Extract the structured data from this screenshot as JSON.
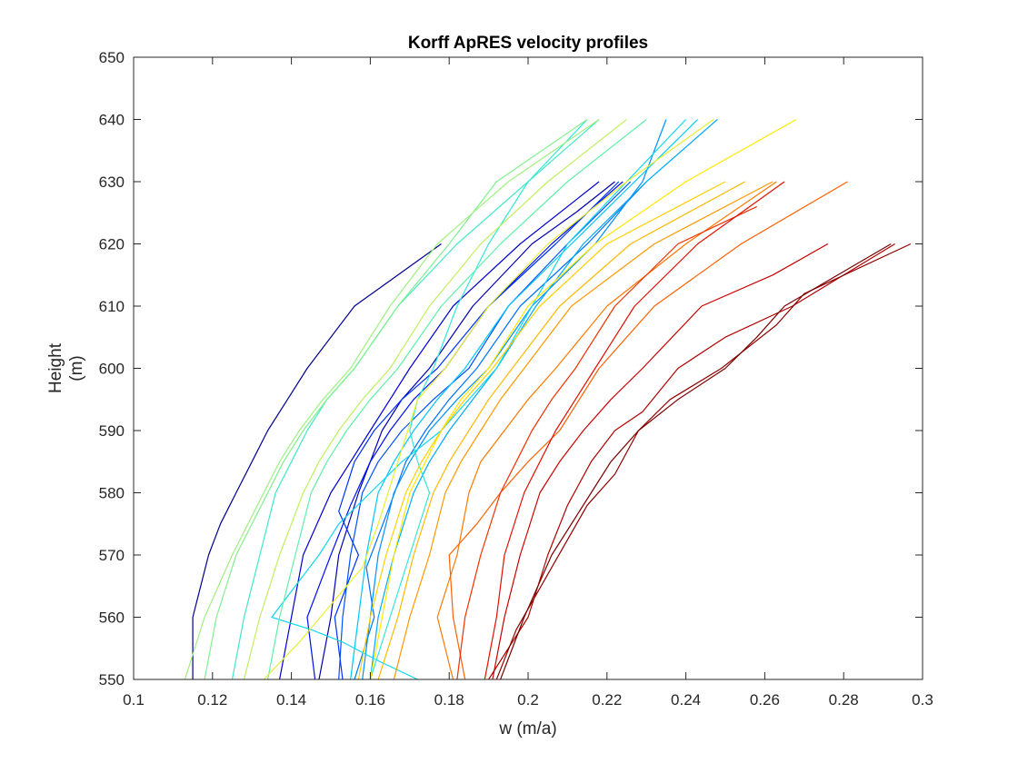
{
  "chart_data": {
    "type": "line",
    "title": "Korff ApRES velocity profiles",
    "xlabel": "w (m/a)",
    "ylabel": [
      "Height",
      "(m)"
    ],
    "xlim": [
      0.1,
      0.3
    ],
    "ylim": [
      550,
      650
    ],
    "xticks": [
      "0.1",
      "0.12",
      "0.14",
      "0.16",
      "0.18",
      "0.2",
      "0.22",
      "0.24",
      "0.26",
      "0.28",
      "0.3"
    ],
    "yticks": [
      "550",
      "560",
      "570",
      "580",
      "590",
      "600",
      "610",
      "620",
      "630",
      "640",
      "650"
    ],
    "xtick_values": [
      0.1,
      0.12,
      0.14,
      0.16,
      0.18,
      0.2,
      0.22,
      0.24,
      0.26,
      0.28,
      0.3
    ],
    "ytick_values": [
      550,
      560,
      570,
      580,
      590,
      600,
      610,
      620,
      630,
      640,
      650
    ],
    "grid": false,
    "box": true,
    "series": [
      {
        "color": "#00008f",
        "x": [
          0.115,
          0.115,
          0.119,
          0.122,
          0.126,
          0.13,
          0.134,
          0.139,
          0.144,
          0.156,
          0.178
        ],
        "y": [
          550,
          560,
          570,
          575,
          580,
          585,
          590,
          595,
          600,
          610,
          620
        ]
      },
      {
        "color": "#0000b0",
        "x": [
          0.147,
          0.15,
          0.152,
          0.157,
          0.16,
          0.163,
          0.168,
          0.175,
          0.186,
          0.201,
          0.212,
          0.222
        ],
        "y": [
          550,
          560,
          570,
          580,
          585,
          590,
          595,
          600,
          610,
          620,
          625,
          630
        ]
      },
      {
        "color": "#0000d0",
        "x": [
          0.137,
          0.14,
          0.143,
          0.15,
          0.155,
          0.16,
          0.165,
          0.17,
          0.181,
          0.198,
          0.218
        ],
        "y": [
          550,
          560,
          570,
          580,
          585,
          590,
          595,
          600,
          610,
          620,
          630
        ]
      },
      {
        "color": "#0010f0",
        "x": [
          0.146,
          0.144,
          0.15,
          0.155,
          0.16,
          0.165,
          0.171,
          0.179,
          0.19,
          0.206,
          0.224
        ],
        "y": [
          550,
          560,
          570,
          578,
          585,
          590,
          595,
          600,
          610,
          620,
          630
        ]
      },
      {
        "color": "#0030ff",
        "x": [
          0.153,
          0.151,
          0.157,
          0.152,
          0.156,
          0.161,
          0.168,
          0.177,
          0.19,
          0.207,
          0.223
        ],
        "y": [
          550,
          560,
          570,
          577,
          585,
          590,
          595,
          600,
          610,
          620,
          630
        ]
      },
      {
        "color": "#0050ff",
        "x": [
          0.152,
          0.153,
          0.155,
          0.158,
          0.162,
          0.168,
          0.176,
          0.185,
          0.195,
          0.21,
          0.226
        ],
        "y": [
          550,
          560,
          570,
          580,
          585,
          590,
          595,
          600,
          610,
          620,
          630
        ]
      },
      {
        "color": "#0070ff",
        "x": [
          0.156,
          0.161,
          0.159,
          0.165,
          0.169,
          0.174,
          0.18,
          0.187,
          0.198,
          0.215,
          0.23
        ],
        "y": [
          550,
          560,
          568,
          578,
          585,
          590,
          595,
          600,
          610,
          620,
          630
        ]
      },
      {
        "color": "#0090ff",
        "x": [
          0.158,
          0.16,
          0.162,
          0.166,
          0.17,
          0.175,
          0.182,
          0.19,
          0.201,
          0.217,
          0.229,
          0.235
        ],
        "y": [
          550,
          560,
          570,
          580,
          585,
          590,
          595,
          600,
          610,
          620,
          630,
          640
        ]
      },
      {
        "color": "#00aaff",
        "x": [
          0.16,
          0.162,
          0.166,
          0.171,
          0.175,
          0.18,
          0.186,
          0.192,
          0.202,
          0.214,
          0.23,
          0.248
        ],
        "y": [
          550,
          560,
          570,
          580,
          585,
          590,
          595,
          600,
          610,
          620,
          630,
          640
        ]
      },
      {
        "color": "#00c8ff",
        "x": [
          0.155,
          0.157,
          0.159,
          0.162,
          0.166,
          0.171,
          0.177,
          0.184,
          0.195,
          0.211,
          0.227,
          0.243
        ],
        "y": [
          550,
          560,
          570,
          580,
          585,
          590,
          595,
          600,
          610,
          620,
          630,
          640
        ]
      },
      {
        "color": "#10d8f0",
        "x": [
          0.172,
          0.162,
          0.153,
          0.145,
          0.135,
          0.141,
          0.147,
          0.152,
          0.16,
          0.168,
          0.178,
          0.192,
          0.21,
          0.24
        ],
        "y": [
          550,
          553,
          556,
          558,
          560,
          565,
          570,
          575,
          580,
          585,
          590,
          600,
          620,
          640
        ]
      },
      {
        "color": "#30e8d8",
        "x": [
          0.16,
          0.165,
          0.17,
          0.175,
          0.172,
          0.17,
          0.172,
          0.176,
          0.182,
          0.19,
          0.2,
          0.215
        ],
        "y": [
          550,
          560,
          570,
          580,
          585,
          590,
          595,
          600,
          610,
          620,
          630,
          640
        ]
      },
      {
        "color": "#40e8c8",
        "x": [
          0.125,
          0.128,
          0.132,
          0.136,
          0.14,
          0.144,
          0.149,
          0.156,
          0.167,
          0.182,
          0.2,
          0.218
        ],
        "y": [
          550,
          560,
          570,
          580,
          585,
          590,
          595,
          600,
          610,
          620,
          630,
          640
        ]
      },
      {
        "color": "#60f0a8",
        "x": [
          0.134,
          0.137,
          0.141,
          0.145,
          0.149,
          0.154,
          0.16,
          0.167,
          0.178,
          0.193,
          0.21,
          0.23
        ],
        "y": [
          550,
          560,
          570,
          580,
          585,
          590,
          595,
          600,
          610,
          620,
          630,
          640
        ]
      },
      {
        "color": "#80f090",
        "x": [
          0.118,
          0.121,
          0.126,
          0.134,
          0.138,
          0.143,
          0.149,
          0.156,
          0.167,
          0.18,
          0.192,
          0.215
        ],
        "y": [
          550,
          560,
          570,
          580,
          585,
          590,
          595,
          600,
          610,
          620,
          630,
          640
        ]
      },
      {
        "color": "#a0f080",
        "x": [
          0.113,
          0.118,
          0.125,
          0.133,
          0.137,
          0.142,
          0.148,
          0.155,
          0.165,
          0.177,
          0.195,
          0.218
        ],
        "y": [
          550,
          560,
          570,
          580,
          585,
          590,
          595,
          600,
          610,
          620,
          630,
          640
        ]
      },
      {
        "color": "#c0f060",
        "x": [
          0.128,
          0.132,
          0.137,
          0.143,
          0.147,
          0.152,
          0.158,
          0.165,
          0.175,
          0.188,
          0.205,
          0.225
        ],
        "y": [
          550,
          560,
          570,
          580,
          585,
          590,
          595,
          600,
          610,
          620,
          630,
          640
        ]
      },
      {
        "color": "#e8f030",
        "x": [
          0.133,
          0.142,
          0.15,
          0.158,
          0.162,
          0.167,
          0.172,
          0.179,
          0.19,
          0.205,
          0.225,
          0.247
        ],
        "y": [
          550,
          556,
          562,
          568,
          575,
          585,
          595,
          600,
          610,
          620,
          630,
          640
        ]
      },
      {
        "color": "#ffe800",
        "x": [
          0.16,
          0.163,
          0.166,
          0.17,
          0.174,
          0.178,
          0.183,
          0.19,
          0.2,
          0.217,
          0.24,
          0.268
        ],
        "y": [
          550,
          560,
          570,
          580,
          585,
          590,
          595,
          600,
          610,
          620,
          630,
          640
        ]
      },
      {
        "color": "#ffd000",
        "x": [
          0.157,
          0.16,
          0.164,
          0.169,
          0.173,
          0.178,
          0.184,
          0.191,
          0.203,
          0.22,
          0.25
        ],
        "y": [
          550,
          560,
          570,
          580,
          585,
          590,
          595,
          600,
          610,
          620,
          630
        ]
      },
      {
        "color": "#ffb800",
        "x": [
          0.162,
          0.167,
          0.171,
          0.176,
          0.18,
          0.185,
          0.19,
          0.196,
          0.208,
          0.226,
          0.255
        ],
        "y": [
          550,
          560,
          570,
          580,
          585,
          590,
          595,
          600,
          610,
          620,
          630
        ]
      },
      {
        "color": "#ff9800",
        "x": [
          0.166,
          0.17,
          0.175,
          0.179,
          0.183,
          0.188,
          0.193,
          0.199,
          0.211,
          0.232,
          0.262
        ],
        "y": [
          550,
          560,
          570,
          580,
          585,
          590,
          595,
          600,
          610,
          620,
          630
        ]
      },
      {
        "color": "#ff7800",
        "x": [
          0.181,
          0.177,
          0.182,
          0.185,
          0.188,
          0.194,
          0.2,
          0.207,
          0.22,
          0.24,
          0.263
        ],
        "y": [
          550,
          560,
          570,
          580,
          585,
          590,
          595,
          600,
          610,
          620,
          630
        ]
      },
      {
        "color": "#ff6000",
        "x": [
          0.184,
          0.181,
          0.18,
          0.187,
          0.193,
          0.2,
          0.208,
          0.218,
          0.232,
          0.254,
          0.281
        ],
        "y": [
          550,
          560,
          570,
          575,
          580,
          585,
          590,
          600,
          610,
          620,
          630
        ]
      },
      {
        "color": "#f03000",
        "x": [
          0.182,
          0.184,
          0.188,
          0.193,
          0.197,
          0.201,
          0.206,
          0.212,
          0.222,
          0.238,
          0.258
        ],
        "y": [
          550,
          560,
          570,
          580,
          585,
          590,
          595,
          600,
          610,
          620,
          626
        ]
      },
      {
        "color": "#e01000",
        "x": [
          0.189,
          0.192,
          0.194,
          0.199,
          0.203,
          0.207,
          0.212,
          0.217,
          0.227,
          0.243,
          0.265
        ],
        "y": [
          550,
          560,
          570,
          580,
          585,
          590,
          595,
          600,
          610,
          620,
          630
        ]
      },
      {
        "color": "#c80000",
        "x": [
          0.191,
          0.194,
          0.198,
          0.203,
          0.208,
          0.214,
          0.221,
          0.229,
          0.244,
          0.262,
          0.276
        ],
        "y": [
          550,
          560,
          570,
          580,
          585,
          590,
          595,
          600,
          610,
          615,
          620
        ]
      },
      {
        "color": "#b00000",
        "x": [
          0.19,
          0.2,
          0.205,
          0.21,
          0.216,
          0.222,
          0.229,
          0.238,
          0.25,
          0.267,
          0.293
        ],
        "y": [
          550,
          560,
          570,
          578,
          585,
          590,
          593,
          600,
          605,
          610,
          620
        ]
      },
      {
        "color": "#900000",
        "x": [
          0.192,
          0.197,
          0.206,
          0.215,
          0.222,
          0.228,
          0.236,
          0.249,
          0.263,
          0.27,
          0.297
        ],
        "y": [
          550,
          558,
          568,
          578,
          583,
          590,
          595,
          600,
          607,
          612,
          620
        ]
      },
      {
        "color": "#7a0000",
        "x": [
          0.193,
          0.199,
          0.206,
          0.216,
          0.221,
          0.228,
          0.238,
          0.25,
          0.258,
          0.265,
          0.292
        ],
        "y": [
          550,
          560,
          570,
          580,
          585,
          590,
          595,
          600,
          605,
          610,
          620
        ]
      }
    ]
  }
}
